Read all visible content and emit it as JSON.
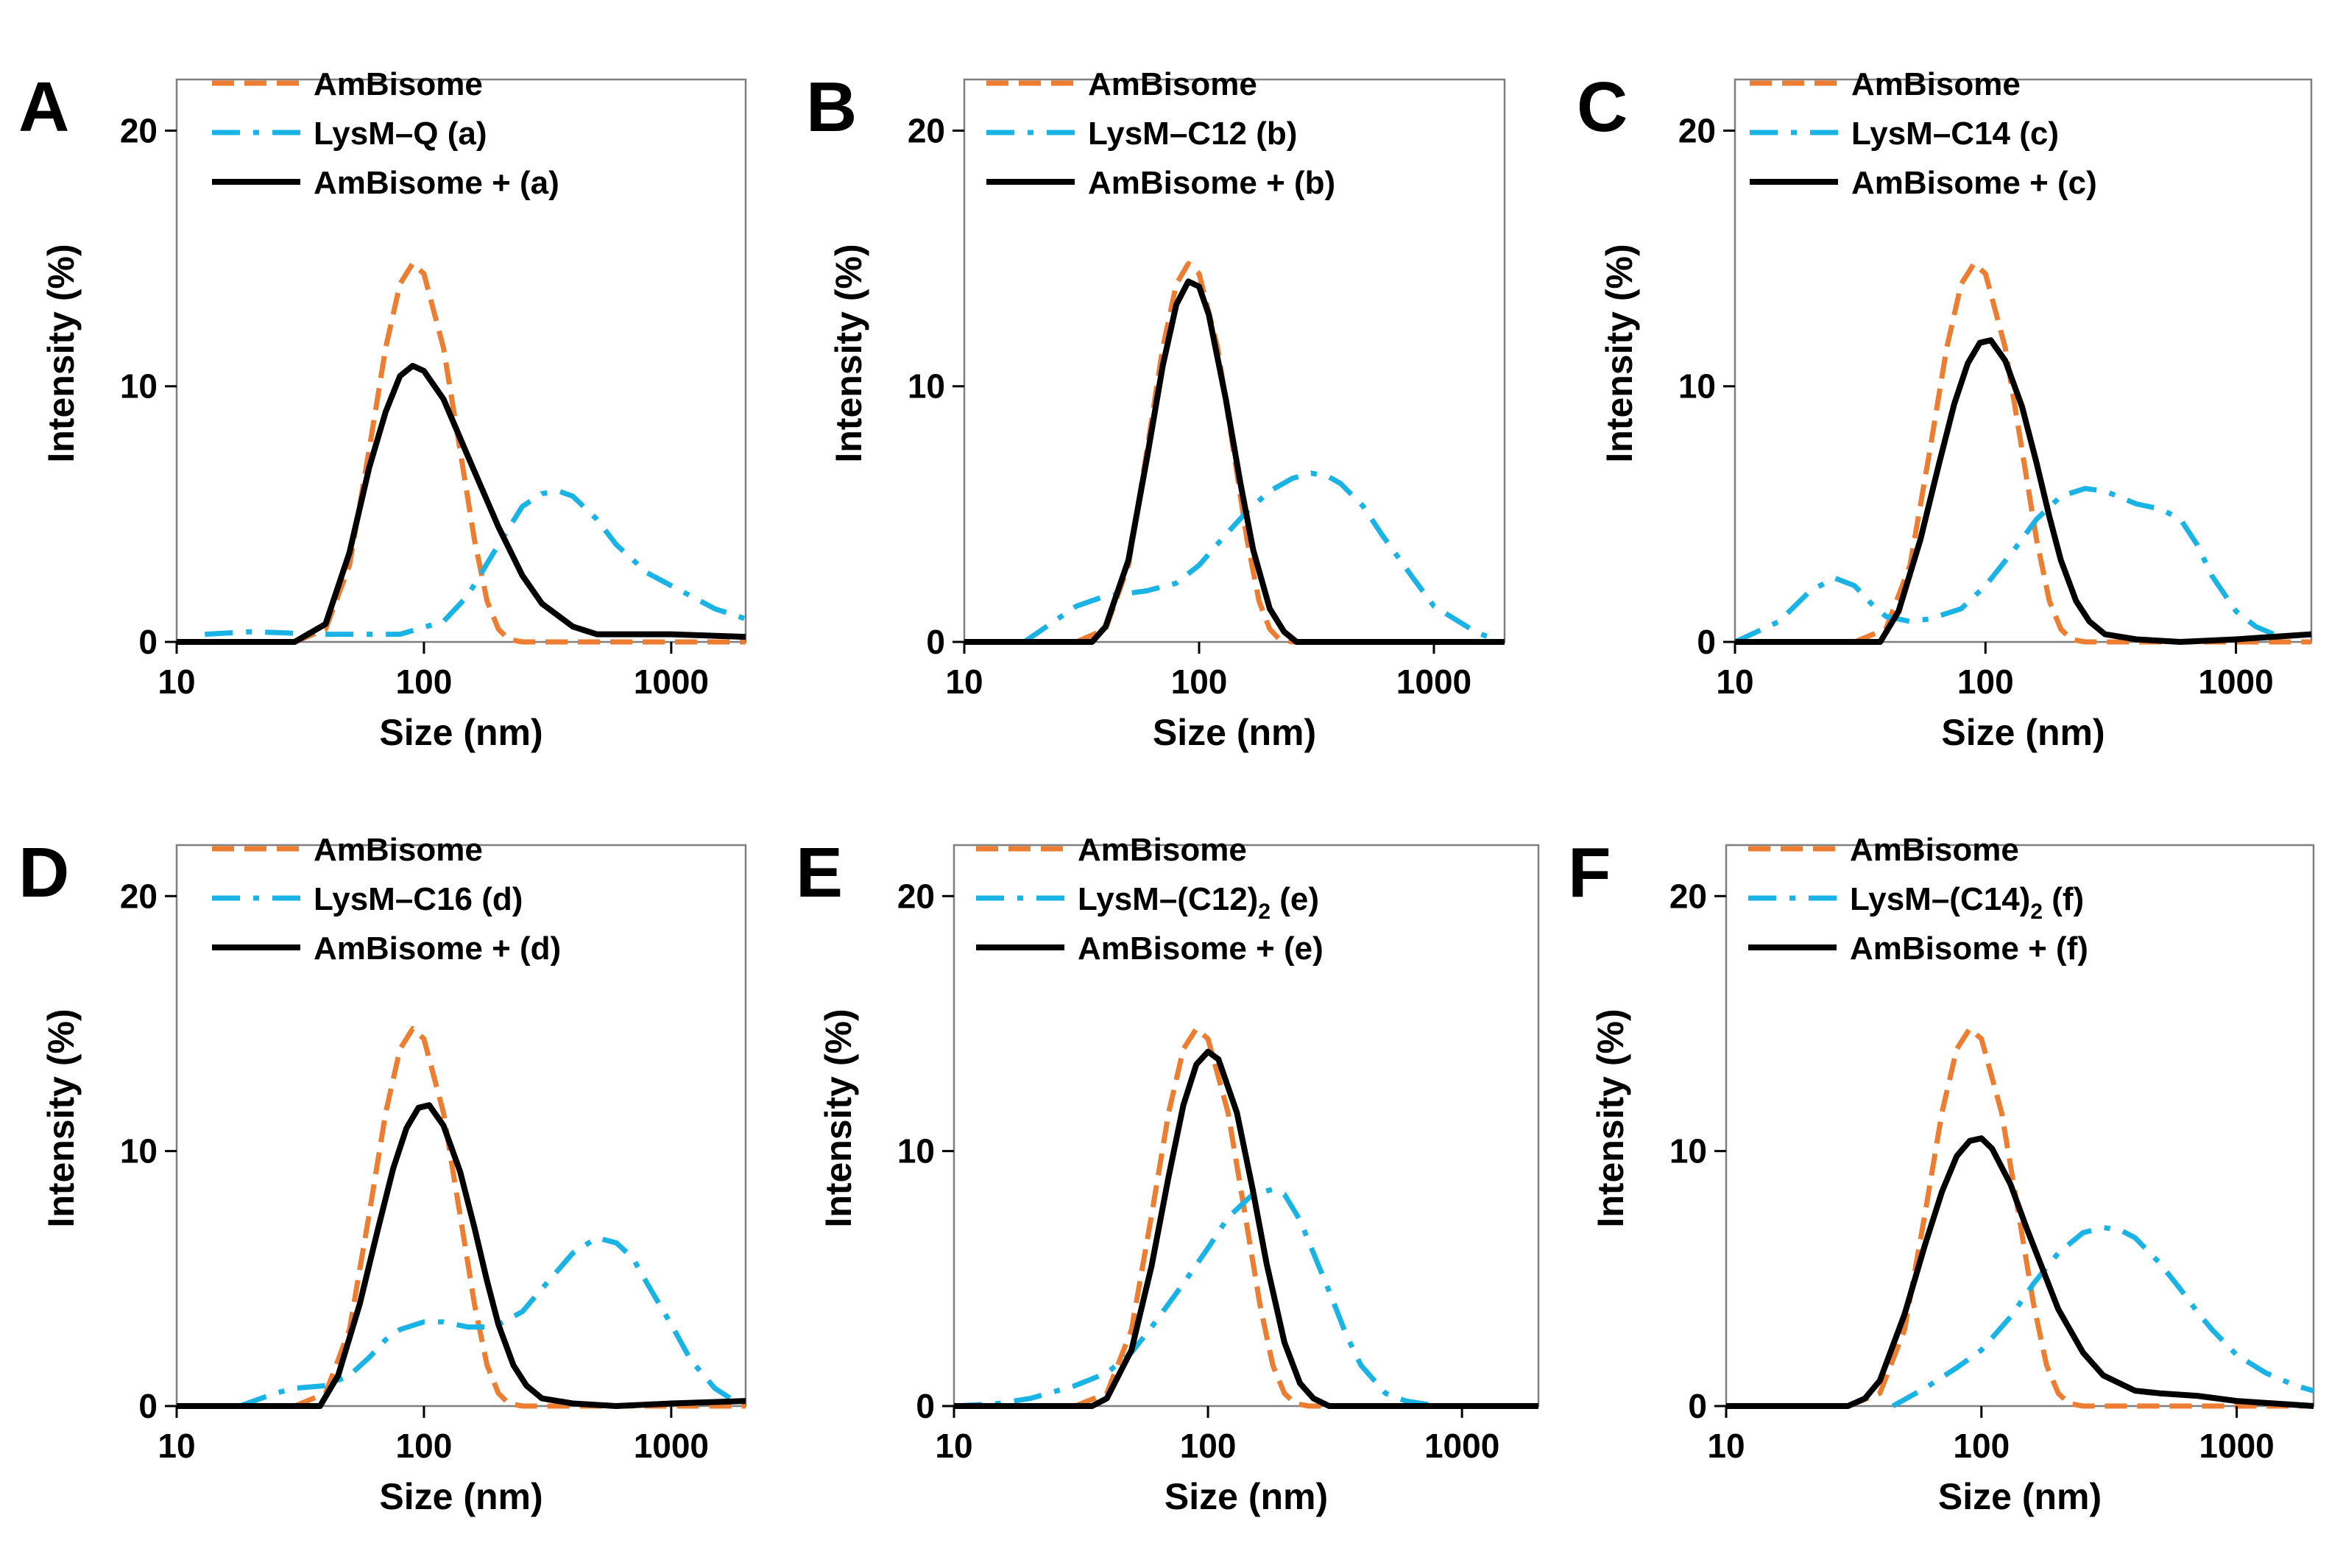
{
  "chart_data": [
    {
      "panel": "A",
      "type": "line",
      "xscale": "log",
      "xlabel": "Size (nm)",
      "ylabel": "Intensity (%)",
      "xlim": [
        10,
        2000
      ],
      "ylim": [
        0,
        22
      ],
      "xticks": [
        "10",
        "100",
        "1000"
      ],
      "yticks": [
        "0",
        "10",
        "20"
      ],
      "series": [
        {
          "name": "AmBisome",
          "label": "AmBisome",
          "style": "dashed",
          "color": "#ED7D31",
          "x": [
            30,
            40,
            50,
            60,
            70,
            80,
            90,
            100,
            120,
            140,
            160,
            180,
            200,
            220,
            250,
            2000
          ],
          "y": [
            0,
            0.5,
            3,
            7.5,
            11.5,
            14,
            14.8,
            14.4,
            11.5,
            7.5,
            4,
            1.6,
            0.5,
            0.1,
            0,
            0
          ]
        },
        {
          "name": "LysM-Q",
          "label": "LysM–Q (a)",
          "style": "dashdot",
          "color": "#1AB3E6",
          "x": [
            13,
            20,
            40,
            80,
            120,
            150,
            200,
            250,
            300,
            350,
            400,
            500,
            600,
            800,
            1000,
            1500,
            2000
          ],
          "y": [
            0.3,
            0.4,
            0.3,
            0.3,
            0.8,
            1.8,
            3.8,
            5.3,
            5.8,
            5.9,
            5.7,
            4.8,
            3.8,
            2.7,
            2.2,
            1.3,
            0.9
          ]
        },
        {
          "name": "AmBisome + (a)",
          "label": "AmBisome + (a)",
          "style": "solid",
          "color": "#000000",
          "x": [
            10,
            30,
            40,
            50,
            60,
            70,
            80,
            90,
            100,
            120,
            150,
            200,
            250,
            300,
            400,
            500,
            700,
            1000,
            2000
          ],
          "y": [
            0,
            0,
            0.7,
            3.5,
            6.8,
            9,
            10.4,
            10.8,
            10.6,
            9.5,
            7.3,
            4.5,
            2.6,
            1.5,
            0.6,
            0.3,
            0.3,
            0.3,
            0.2
          ]
        }
      ]
    },
    {
      "panel": "B",
      "type": "line",
      "xscale": "log",
      "xlabel": "Size (nm)",
      "ylabel": "Intensity (%)",
      "xlim": [
        10,
        2000
      ],
      "ylim": [
        0,
        22
      ],
      "xticks": [
        "10",
        "100",
        "1000"
      ],
      "yticks": [
        "0",
        "10",
        "20"
      ],
      "series": [
        {
          "name": "AmBisome",
          "label": "AmBisome",
          "style": "dashed",
          "color": "#ED7D31",
          "x": [
            30,
            40,
            50,
            60,
            70,
            80,
            90,
            100,
            120,
            140,
            160,
            180,
            200,
            220,
            250,
            2000
          ],
          "y": [
            0,
            0.5,
            3,
            7.5,
            11.5,
            14,
            14.8,
            14.4,
            11.5,
            7.5,
            4,
            1.6,
            0.5,
            0.1,
            0,
            0
          ]
        },
        {
          "name": "LysM-C12",
          "label": "LysM–C12 (b)",
          "style": "dashdot",
          "color": "#1AB3E6",
          "x": [
            18,
            25,
            30,
            40,
            50,
            60,
            80,
            100,
            130,
            160,
            200,
            250,
            300,
            350,
            400,
            500,
            600,
            800,
            1000,
            1500,
            1800
          ],
          "y": [
            0,
            0.9,
            1.4,
            1.8,
            1.9,
            2.0,
            2.3,
            3.0,
            4.2,
            5.1,
            5.9,
            6.4,
            6.6,
            6.5,
            6.2,
            5.3,
            4.2,
            2.6,
            1.4,
            0.4,
            0.1
          ]
        },
        {
          "name": "AmBisome + (b)",
          "label": "AmBisome + (b)",
          "style": "solid",
          "color": "#000000",
          "x": [
            10,
            35,
            40,
            50,
            60,
            70,
            80,
            90,
            100,
            110,
            130,
            150,
            170,
            200,
            230,
            260,
            2000
          ],
          "y": [
            0,
            0,
            0.6,
            3.2,
            7.2,
            10.8,
            13.2,
            14.1,
            13.9,
            12.8,
            9.5,
            6.2,
            3.6,
            1.3,
            0.4,
            0,
            0
          ]
        }
      ]
    },
    {
      "panel": "C",
      "type": "line",
      "xscale": "log",
      "xlabel": "Size (nm)",
      "ylabel": "Intensity (%)",
      "xlim": [
        10,
        2000
      ],
      "ylim": [
        0,
        22
      ],
      "xticks": [
        "10",
        "100",
        "1000"
      ],
      "yticks": [
        "0",
        "10",
        "20"
      ],
      "series": [
        {
          "name": "AmBisome",
          "label": "AmBisome",
          "style": "dashed",
          "color": "#ED7D31",
          "x": [
            30,
            40,
            50,
            60,
            70,
            80,
            90,
            100,
            120,
            140,
            160,
            180,
            200,
            220,
            250,
            2000
          ],
          "y": [
            0,
            0.5,
            3,
            7.5,
            11.5,
            14,
            14.8,
            14.4,
            11.5,
            7.5,
            4,
            1.6,
            0.5,
            0.1,
            0,
            0
          ]
        },
        {
          "name": "LysM-C14",
          "label": "LysM–C14 (c)",
          "style": "dashdot",
          "color": "#1AB3E6",
          "x": [
            10,
            15,
            20,
            25,
            30,
            35,
            40,
            50,
            60,
            80,
            100,
            130,
            160,
            200,
            250,
            300,
            400,
            500,
            600,
            700,
            800,
            1000,
            1200,
            1500
          ],
          "y": [
            0,
            0.8,
            2.0,
            2.5,
            2.2,
            1.5,
            1.0,
            0.8,
            0.9,
            1.3,
            2.2,
            3.6,
            4.8,
            5.7,
            6.0,
            5.9,
            5.4,
            5.2,
            4.8,
            3.8,
            2.6,
            1.2,
            0.6,
            0.2
          ]
        },
        {
          "name": "AmBisome + (c)",
          "label": "AmBisome + (c)",
          "style": "solid",
          "color": "#000000",
          "x": [
            10,
            38,
            45,
            55,
            65,
            75,
            85,
            95,
            105,
            120,
            140,
            160,
            180,
            200,
            230,
            260,
            300,
            400,
            600,
            1000,
            2000
          ],
          "y": [
            0,
            0,
            1.2,
            4.0,
            6.9,
            9.3,
            10.9,
            11.7,
            11.8,
            11.0,
            9.2,
            7.0,
            4.9,
            3.2,
            1.6,
            0.8,
            0.3,
            0.1,
            0,
            0.1,
            0.3
          ]
        }
      ]
    },
    {
      "panel": "D",
      "type": "line",
      "xscale": "log",
      "xlabel": "Size (nm)",
      "ylabel": "Intensity (%)",
      "xlim": [
        10,
        2000
      ],
      "ylim": [
        0,
        22
      ],
      "xticks": [
        "10",
        "100",
        "1000"
      ],
      "yticks": [
        "0",
        "10",
        "20"
      ],
      "series": [
        {
          "name": "AmBisome",
          "label": "AmBisome",
          "style": "dashed",
          "color": "#ED7D31",
          "x": [
            30,
            40,
            50,
            60,
            70,
            80,
            90,
            100,
            120,
            140,
            160,
            180,
            200,
            220,
            250,
            2000
          ],
          "y": [
            0,
            0.5,
            3,
            7.5,
            11.5,
            14,
            14.8,
            14.4,
            11.5,
            7.5,
            4,
            1.6,
            0.5,
            0.1,
            0,
            0
          ]
        },
        {
          "name": "LysM-C16",
          "label": "LysM–C16 (d)",
          "style": "dashdot",
          "color": "#1AB3E6",
          "x": [
            18,
            25,
            30,
            40,
            50,
            60,
            70,
            80,
            100,
            120,
            150,
            180,
            200,
            250,
            300,
            400,
            500,
            600,
            700,
            800,
            1000,
            1200,
            1500,
            1800
          ],
          "y": [
            0,
            0.5,
            0.7,
            0.8,
            1.2,
            1.9,
            2.6,
            3.0,
            3.3,
            3.3,
            3.1,
            3.1,
            3.2,
            3.7,
            4.6,
            6.0,
            6.6,
            6.4,
            5.8,
            4.8,
            3.2,
            1.8,
            0.7,
            0.2
          ]
        },
        {
          "name": "AmBisome + (d)",
          "label": "AmBisome + (d)",
          "style": "solid",
          "color": "#000000",
          "x": [
            10,
            38,
            45,
            55,
            65,
            75,
            85,
            95,
            105,
            120,
            140,
            160,
            180,
            200,
            230,
            260,
            300,
            400,
            600,
            1000,
            2000
          ],
          "y": [
            0,
            0,
            1.2,
            4.0,
            6.9,
            9.3,
            10.9,
            11.7,
            11.8,
            11.0,
            9.2,
            7.0,
            4.9,
            3.2,
            1.6,
            0.8,
            0.3,
            0.1,
            0,
            0.1,
            0.2
          ]
        }
      ]
    },
    {
      "panel": "E",
      "type": "line",
      "xscale": "log",
      "xlabel": "Size (nm)",
      "ylabel": "Intensity (%)",
      "xlim": [
        10,
        2000
      ],
      "ylim": [
        0,
        22
      ],
      "xticks": [
        "10",
        "100",
        "1000"
      ],
      "yticks": [
        "0",
        "10",
        "20"
      ],
      "series": [
        {
          "name": "AmBisome",
          "label": "AmBisome",
          "style": "dashed",
          "color": "#ED7D31",
          "x": [
            30,
            40,
            50,
            60,
            70,
            80,
            90,
            100,
            120,
            140,
            160,
            180,
            200,
            220,
            250,
            2000
          ],
          "y": [
            0,
            0.5,
            3,
            7.5,
            11.5,
            14,
            14.8,
            14.4,
            11.5,
            7.5,
            4,
            1.6,
            0.5,
            0.1,
            0,
            0
          ]
        },
        {
          "name": "LysM-(C12)2",
          "label": "LysM–(C12)",
          "label_sub": "2",
          "label_suffix": "(e)",
          "style": "dashdot",
          "color": "#1AB3E6",
          "x": [
            10,
            15,
            20,
            30,
            40,
            50,
            60,
            80,
            100,
            120,
            150,
            180,
            200,
            230,
            260,
            300,
            350,
            400,
            500,
            600,
            800,
            1000,
            2000
          ],
          "y": [
            0,
            0.1,
            0.3,
            0.8,
            1.3,
            2.1,
            3.1,
            4.8,
            6.2,
            7.4,
            8.3,
            8.5,
            8.3,
            7.3,
            6.0,
            4.5,
            2.8,
            1.6,
            0.5,
            0.2,
            0,
            0,
            0
          ]
        },
        {
          "name": "AmBisome + (e)",
          "label": "AmBisome + (e)",
          "style": "solid",
          "color": "#000000",
          "x": [
            10,
            35,
            40,
            50,
            60,
            70,
            80,
            90,
            100,
            110,
            130,
            150,
            170,
            200,
            230,
            260,
            300,
            2000
          ],
          "y": [
            0,
            0,
            0.3,
            2.2,
            5.5,
            9.0,
            11.8,
            13.4,
            13.9,
            13.6,
            11.5,
            8.5,
            5.6,
            2.5,
            0.9,
            0.3,
            0,
            0
          ]
        }
      ]
    },
    {
      "panel": "F",
      "type": "line",
      "xscale": "log",
      "xlabel": "Size (nm)",
      "ylabel": "Intensity (%)",
      "xlim": [
        10,
        2000
      ],
      "ylim": [
        0,
        22
      ],
      "xticks": [
        "10",
        "100",
        "1000"
      ],
      "yticks": [
        "0",
        "10",
        "20"
      ],
      "series": [
        {
          "name": "AmBisome",
          "label": "AmBisome",
          "style": "dashed",
          "color": "#ED7D31",
          "x": [
            30,
            40,
            50,
            60,
            70,
            80,
            90,
            100,
            120,
            140,
            160,
            180,
            200,
            220,
            250,
            2000
          ],
          "y": [
            0,
            0.5,
            3,
            7.5,
            11.5,
            14,
            14.8,
            14.4,
            11.5,
            7.5,
            4,
            1.6,
            0.5,
            0.1,
            0,
            0
          ]
        },
        {
          "name": "LysM-(C14)2",
          "label": "LysM–(C14)",
          "label_sub": "2",
          "label_suffix": "(f)",
          "style": "dashdot",
          "color": "#1AB3E6",
          "x": [
            45,
            60,
            80,
            100,
            130,
            160,
            200,
            250,
            300,
            350,
            400,
            500,
            600,
            700,
            800,
            1000,
            1300,
            1700,
            2000
          ],
          "y": [
            0,
            0.7,
            1.5,
            2.2,
            3.5,
            4.8,
            6.0,
            6.8,
            7.0,
            6.9,
            6.6,
            5.6,
            4.6,
            3.7,
            3.0,
            2.0,
            1.3,
            0.8,
            0.6
          ]
        },
        {
          "name": "AmBisome + (f)",
          "label": "AmBisome + (f)",
          "style": "solid",
          "color": "#000000",
          "x": [
            10,
            30,
            35,
            40,
            50,
            60,
            70,
            80,
            90,
            100,
            110,
            130,
            150,
            200,
            250,
            300,
            400,
            500,
            700,
            1000,
            2000
          ],
          "y": [
            0,
            0,
            0.3,
            1.0,
            3.6,
            6.3,
            8.4,
            9.8,
            10.4,
            10.5,
            10.1,
            8.7,
            7.0,
            3.8,
            2.1,
            1.2,
            0.6,
            0.5,
            0.4,
            0.2,
            0
          ]
        }
      ]
    }
  ]
}
